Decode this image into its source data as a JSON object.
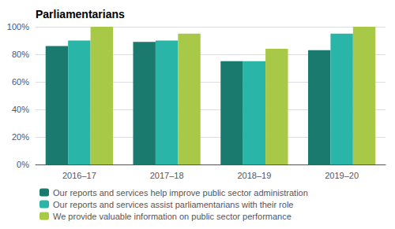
{
  "chart_data": {
    "type": "bar",
    "title": "Parliamentarians",
    "categories": [
      "2016–17",
      "2017–18",
      "2018–19",
      "2019–20"
    ],
    "series": [
      {
        "name": "Our reports and services help improve public sector administration",
        "color": "#1a7a6e",
        "values": [
          86,
          89,
          75,
          83
        ]
      },
      {
        "name": "Our reports and services assist parliamentarians with their role",
        "color": "#29b5a8",
        "values": [
          90,
          90,
          75,
          95
        ]
      },
      {
        "name": "We provide valuable information on public sector performance",
        "color": "#a8c847",
        "values": [
          100,
          95,
          84,
          100
        ]
      }
    ],
    "ylim": [
      0,
      100
    ],
    "yticks": [
      {
        "value": 0,
        "label": "0%"
      },
      {
        "value": 20,
        "label": "20%"
      },
      {
        "value": 40,
        "label": "40%"
      },
      {
        "value": 60,
        "label": "60%"
      },
      {
        "value": 80,
        "label": "80%"
      },
      {
        "value": 100,
        "label": "100%"
      }
    ],
    "grid": true,
    "legend": "bottom"
  }
}
